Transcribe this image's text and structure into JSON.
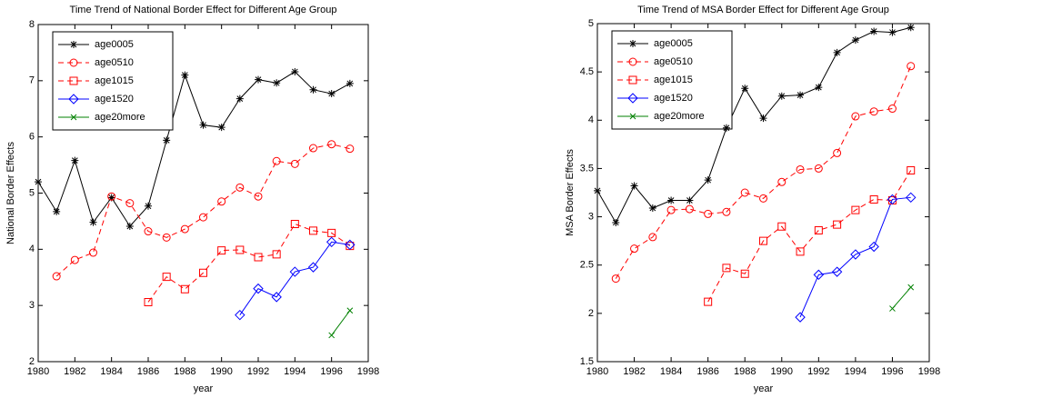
{
  "chart_data": [
    {
      "type": "line",
      "title": "Time Trend of National Border Effect for Different Age Group",
      "xlabel": "year",
      "ylabel": "National Border Effects",
      "x": [
        1980,
        1981,
        1982,
        1983,
        1984,
        1985,
        1986,
        1987,
        1988,
        1989,
        1990,
        1991,
        1992,
        1993,
        1994,
        1995,
        1996,
        1997
      ],
      "xlim": [
        1980,
        1998
      ],
      "xticks": [
        1980,
        1982,
        1984,
        1986,
        1988,
        1990,
        1992,
        1994,
        1996,
        1998
      ],
      "ylim": [
        2,
        8
      ],
      "yticks": [
        2,
        3,
        4,
        5,
        6,
        7,
        8
      ],
      "legend": "upper left",
      "series": [
        {
          "name": "age0005",
          "color": "#000000",
          "linestyle": "solid",
          "marker": "star",
          "values": [
            5.2,
            4.67,
            5.58,
            4.48,
            4.92,
            4.41,
            4.77,
            5.94,
            7.1,
            6.21,
            6.17,
            6.68,
            7.02,
            6.96,
            7.16,
            6.84,
            6.77,
            6.95
          ]
        },
        {
          "name": "age0510",
          "color": "#ff0000",
          "linestyle": "dashed",
          "marker": "circle",
          "values": [
            null,
            3.52,
            3.81,
            3.94,
            4.94,
            4.82,
            4.32,
            4.21,
            4.36,
            4.57,
            4.85,
            5.1,
            4.94,
            5.57,
            5.52,
            5.8,
            5.87,
            5.79
          ]
        },
        {
          "name": "age1015",
          "color": "#ff0000",
          "linestyle": "dashed",
          "marker": "square",
          "values": [
            null,
            null,
            null,
            null,
            null,
            null,
            3.06,
            3.51,
            3.29,
            3.58,
            3.98,
            3.99,
            3.86,
            3.91,
            4.45,
            4.33,
            4.29,
            4.06
          ]
        },
        {
          "name": "age1520",
          "color": "#0000ff",
          "linestyle": "solid",
          "marker": "diamond",
          "values": [
            null,
            null,
            null,
            null,
            null,
            null,
            null,
            null,
            null,
            null,
            null,
            2.83,
            3.3,
            3.15,
            3.6,
            3.68,
            4.13,
            4.08
          ]
        },
        {
          "name": "age20more",
          "color": "#008000",
          "linestyle": "solid",
          "marker": "x",
          "values": [
            null,
            null,
            null,
            null,
            null,
            null,
            null,
            null,
            null,
            null,
            null,
            null,
            null,
            null,
            null,
            null,
            2.47,
            2.91
          ]
        }
      ]
    },
    {
      "type": "line",
      "title": "Time Trend of MSA Border Effect for Different Age Group",
      "xlabel": "year",
      "ylabel": "MSA Border Effects",
      "x": [
        1980,
        1981,
        1982,
        1983,
        1984,
        1985,
        1986,
        1987,
        1988,
        1989,
        1990,
        1991,
        1992,
        1993,
        1994,
        1995,
        1996,
        1997
      ],
      "xlim": [
        1980,
        1998
      ],
      "xticks": [
        1980,
        1982,
        1984,
        1986,
        1988,
        1990,
        1992,
        1994,
        1996,
        1998
      ],
      "ylim": [
        1.5,
        5
      ],
      "yticks": [
        1.5,
        2,
        2.5,
        3,
        3.5,
        4,
        4.5,
        5
      ],
      "legend": "upper left",
      "series": [
        {
          "name": "age0005",
          "color": "#000000",
          "linestyle": "solid",
          "marker": "star",
          "values": [
            3.27,
            2.94,
            3.32,
            3.09,
            3.17,
            3.17,
            3.38,
            3.92,
            4.33,
            4.02,
            4.25,
            4.26,
            4.34,
            4.7,
            4.83,
            4.92,
            4.91,
            4.96
          ]
        },
        {
          "name": "age0510",
          "color": "#ff0000",
          "linestyle": "dashed",
          "marker": "circle",
          "values": [
            null,
            2.36,
            2.67,
            2.79,
            3.07,
            3.08,
            3.03,
            3.05,
            3.25,
            3.19,
            3.36,
            3.49,
            3.5,
            3.66,
            4.04,
            4.09,
            4.12,
            4.56
          ]
        },
        {
          "name": "age1015",
          "color": "#ff0000",
          "linestyle": "dashed",
          "marker": "square",
          "values": [
            null,
            null,
            null,
            null,
            null,
            null,
            2.12,
            2.47,
            2.41,
            2.75,
            2.9,
            2.64,
            2.86,
            2.92,
            3.07,
            3.18,
            3.17,
            3.48
          ]
        },
        {
          "name": "age1520",
          "color": "#0000ff",
          "linestyle": "solid",
          "marker": "diamond",
          "values": [
            null,
            null,
            null,
            null,
            null,
            null,
            null,
            null,
            null,
            null,
            null,
            1.96,
            2.4,
            2.43,
            2.61,
            2.69,
            3.18,
            3.2
          ]
        },
        {
          "name": "age20more",
          "color": "#008000",
          "linestyle": "solid",
          "marker": "x",
          "values": [
            null,
            null,
            null,
            null,
            null,
            null,
            null,
            null,
            null,
            null,
            null,
            null,
            null,
            null,
            null,
            null,
            2.05,
            2.27
          ]
        }
      ]
    }
  ]
}
